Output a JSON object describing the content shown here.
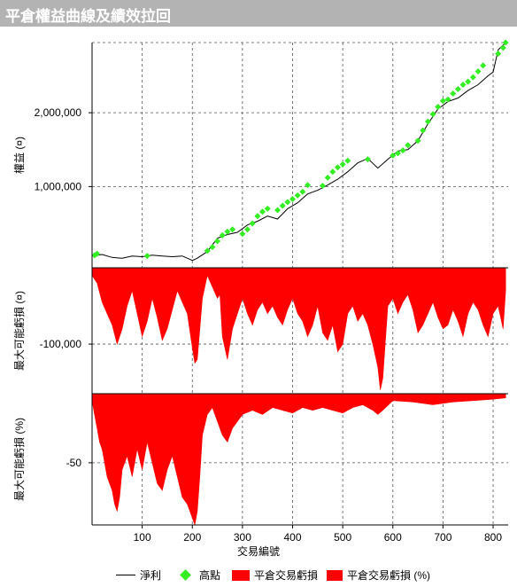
{
  "window": {
    "title": "平倉權益曲線及績效拉回"
  },
  "chart_data": [
    {
      "type": "line",
      "panel": "equity",
      "ylabel": "權益 (¤)",
      "yticks": [
        1000000,
        2000000
      ],
      "ytick_labels": [
        "1,000,000",
        "2,000,000"
      ],
      "ylim": [
        -100000,
        2950000
      ],
      "series": [
        {
          "name": "淨利",
          "color": "#000000",
          "x": [
            0,
            20,
            40,
            60,
            80,
            100,
            120,
            140,
            160,
            180,
            200,
            210,
            230,
            250,
            270,
            290,
            310,
            330,
            350,
            370,
            390,
            410,
            430,
            450,
            470,
            490,
            510,
            530,
            550,
            570,
            590,
            610,
            630,
            650,
            670,
            690,
            710,
            730,
            750,
            770,
            790,
            800,
            810,
            825
          ],
          "y": [
            60000,
            80000,
            40000,
            30000,
            60000,
            50000,
            70000,
            60000,
            50000,
            60000,
            0,
            30000,
            120000,
            300000,
            350000,
            380000,
            480000,
            530000,
            600000,
            560000,
            700000,
            780000,
            900000,
            950000,
            1020000,
            1100000,
            1200000,
            1320000,
            1380000,
            1250000,
            1370000,
            1480000,
            1500000,
            1620000,
            1850000,
            2050000,
            2150000,
            2200000,
            2300000,
            2380000,
            2500000,
            2550000,
            2850000,
            2950000
          ]
        },
        {
          "name": "高點",
          "color": "#33ee22",
          "x": [
            5,
            10,
            110,
            230,
            240,
            250,
            260,
            270,
            280,
            300,
            310,
            320,
            330,
            340,
            350,
            370,
            380,
            390,
            400,
            410,
            420,
            430,
            460,
            470,
            480,
            490,
            500,
            510,
            550,
            600,
            610,
            620,
            630,
            650,
            660,
            670,
            680,
            690,
            700,
            710,
            720,
            730,
            740,
            750,
            760,
            770,
            780,
            810,
            820,
            825
          ],
          "y": [
            70000,
            90000,
            60000,
            130000,
            180000,
            260000,
            340000,
            390000,
            420000,
            360000,
            420000,
            500000,
            600000,
            660000,
            700000,
            680000,
            740000,
            790000,
            830000,
            880000,
            930000,
            1020000,
            1010000,
            1120000,
            1200000,
            1260000,
            1300000,
            1350000,
            1370000,
            1420000,
            1450000,
            1490000,
            1560000,
            1620000,
            1760000,
            1880000,
            1980000,
            2080000,
            2160000,
            2180000,
            2260000,
            2320000,
            2380000,
            2420000,
            2480000,
            2560000,
            2640000,
            2800000,
            2880000,
            2950000
          ]
        }
      ]
    },
    {
      "type": "area",
      "panel": "drawdown_abs",
      "ylabel": "最大可能虧損 (¤)",
      "yticks": [
        -100000
      ],
      "ytick_labels": [
        "-100,000"
      ],
      "ylim": [
        -165000,
        0
      ],
      "series": [
        {
          "name": "平倉交易虧損",
          "color": "#ff0000",
          "x": [
            0,
            10,
            20,
            30,
            40,
            50,
            60,
            70,
            80,
            90,
            100,
            110,
            120,
            130,
            140,
            150,
            160,
            170,
            180,
            190,
            200,
            205,
            210,
            220,
            230,
            240,
            250,
            255,
            260,
            270,
            280,
            290,
            300,
            310,
            320,
            330,
            340,
            350,
            360,
            370,
            380,
            390,
            400,
            410,
            420,
            430,
            440,
            450,
            460,
            470,
            480,
            490,
            500,
            510,
            520,
            530,
            540,
            550,
            560,
            570,
            575,
            580,
            590,
            600,
            610,
            620,
            630,
            640,
            650,
            660,
            670,
            680,
            690,
            700,
            710,
            720,
            730,
            740,
            750,
            760,
            770,
            780,
            790,
            800,
            810,
            820,
            825
          ],
          "y": [
            -10000,
            -20000,
            -45000,
            -60000,
            -75000,
            -100000,
            -80000,
            -50000,
            -30000,
            -60000,
            -90000,
            -70000,
            -40000,
            -65000,
            -95000,
            -80000,
            -55000,
            -30000,
            -45000,
            -60000,
            -105000,
            -125000,
            -120000,
            -40000,
            -10000,
            -25000,
            -40000,
            -35000,
            -90000,
            -120000,
            -80000,
            -60000,
            -40000,
            -60000,
            -75000,
            -55000,
            -45000,
            -60000,
            -50000,
            -65000,
            -75000,
            -55000,
            -40000,
            -60000,
            -70000,
            -90000,
            -75000,
            -50000,
            -85000,
            -95000,
            -75000,
            -110000,
            -100000,
            -60000,
            -50000,
            -70000,
            -60000,
            -75000,
            -100000,
            -130000,
            -160000,
            -145000,
            -50000,
            -40000,
            -60000,
            -45000,
            -35000,
            -55000,
            -85000,
            -75000,
            -60000,
            -45000,
            -65000,
            -80000,
            -75000,
            -55000,
            -70000,
            -90000,
            -60000,
            -45000,
            -55000,
            -75000,
            -90000,
            -60000,
            -50000,
            -80000,
            -30000
          ]
        }
      ]
    },
    {
      "type": "area",
      "panel": "drawdown_pct",
      "ylabel": "最大可能虧損 (%)",
      "xlabel": "交易編號",
      "yticks": [
        -50
      ],
      "ytick_labels": [
        "-50"
      ],
      "xticks": [
        100,
        200,
        300,
        400,
        500,
        600,
        700,
        800
      ],
      "xtick_labels": [
        "100",
        "200",
        "300",
        "400",
        "500",
        "600",
        "700",
        "800"
      ],
      "xlim": [
        0,
        830
      ],
      "ylim": [
        -95,
        0
      ],
      "series": [
        {
          "name": "平倉交易虧損 (%)",
          "color": "#ff0000",
          "x": [
            0,
            5,
            10,
            15,
            20,
            25,
            30,
            35,
            40,
            45,
            50,
            55,
            60,
            70,
            80,
            90,
            100,
            110,
            120,
            130,
            140,
            150,
            160,
            170,
            180,
            190,
            200,
            205,
            210,
            215,
            220,
            230,
            240,
            250,
            260,
            270,
            280,
            290,
            300,
            320,
            340,
            360,
            380,
            400,
            420,
            440,
            460,
            480,
            500,
            520,
            540,
            560,
            570,
            580,
            600,
            640,
            680,
            720,
            760,
            800,
            825
          ],
          "y": [
            -5,
            -15,
            -25,
            -35,
            -40,
            -50,
            -60,
            -65,
            -70,
            -80,
            -85,
            -75,
            -55,
            -45,
            -60,
            -40,
            -55,
            -35,
            -50,
            -65,
            -70,
            -55,
            -45,
            -60,
            -75,
            -80,
            -90,
            -95,
            -85,
            -60,
            -30,
            -15,
            -10,
            -20,
            -30,
            -35,
            -25,
            -20,
            -15,
            -12,
            -15,
            -10,
            -12,
            -14,
            -10,
            -12,
            -10,
            -12,
            -14,
            -10,
            -8,
            -12,
            -15,
            -12,
            -5,
            -6,
            -8,
            -6,
            -5,
            -4,
            -3
          ]
        }
      ]
    }
  ],
  "legend": {
    "items": [
      {
        "label": "淨利"
      },
      {
        "label": "高點"
      },
      {
        "label": "平倉交易虧損"
      },
      {
        "label": "平倉交易虧損 (%)"
      }
    ]
  }
}
